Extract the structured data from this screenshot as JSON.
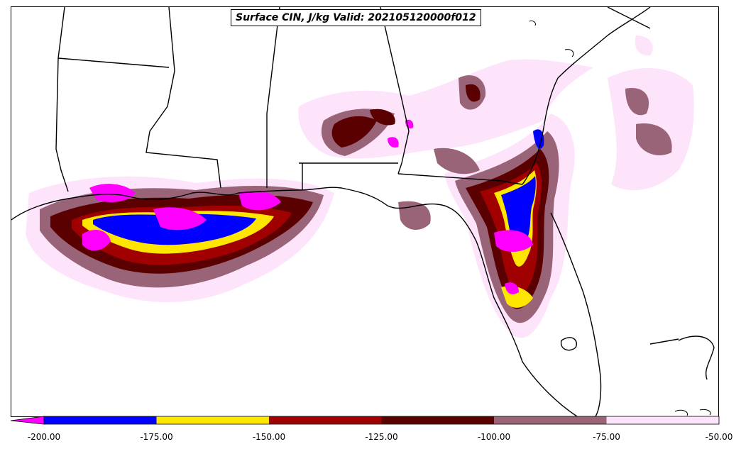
{
  "title": "Surface CIN, J/kg Valid: 202105120000f012",
  "colorbar": {
    "extend_min_color": "#ff00ff",
    "bins": [
      {
        "from": -200,
        "to": -175,
        "color": "#0000ff"
      },
      {
        "from": -175,
        "to": -150,
        "color": "#ffe600"
      },
      {
        "from": -150,
        "to": -125,
        "color": "#a00000"
      },
      {
        "from": -125,
        "to": -100,
        "color": "#5a0000"
      },
      {
        "from": -100,
        "to": -75,
        "color": "#9a6478"
      },
      {
        "from": -75,
        "to": -50,
        "color": "#fde4fb"
      }
    ],
    "ticks": [
      "-200.00",
      "-175.00",
      "-150.00",
      "-125.00",
      "-100.00",
      "-75.00",
      "-50.00"
    ]
  },
  "chart_data": {
    "type": "heatmap",
    "title": "Surface CIN, J/kg Valid: 202105120000f012",
    "value_range": [
      -200,
      -50
    ],
    "levels": [
      -200,
      -175,
      -150,
      -125,
      -100,
      -75,
      -50
    ],
    "colors": [
      "#ff00ff",
      "#0000ff",
      "#ffe600",
      "#a00000",
      "#5a0000",
      "#9a6478",
      "#fde4fb"
    ]
  }
}
